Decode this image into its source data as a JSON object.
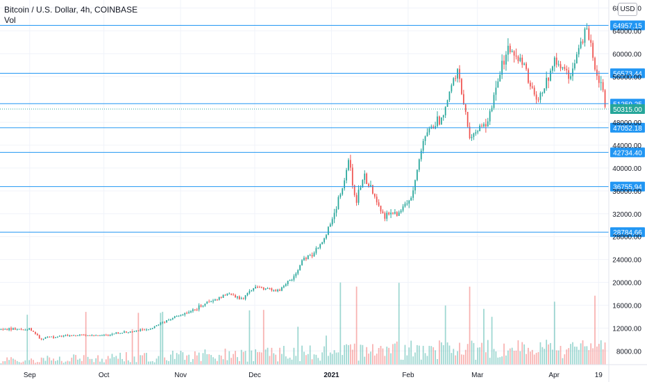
{
  "header": {
    "title": "Bitcoin / U.S. Dollar, 4h, COINBASE",
    "indicator": "Vol"
  },
  "currency_button": "USD",
  "colors": {
    "up": "#26a69a",
    "down": "#ef5350",
    "level_line": "#2196f3",
    "current_price_badge": "#26a69a",
    "grid": "#f0f3fa",
    "axis_text": "#131722"
  },
  "chart_data": {
    "type": "candlestick",
    "title": "Bitcoin / U.S. Dollar, 4h, COINBASE",
    "ylim": [
      5600,
      69400
    ],
    "y_ticks": [
      "8000.00",
      "12000.00",
      "16000.00",
      "20000.00",
      "24000.00",
      "28000.00",
      "32000.00",
      "36000.00",
      "40000.00",
      "44000.00",
      "48000.00",
      "56000.00",
      "60000.00",
      "64000.00",
      "68000.00"
    ],
    "x_ticks": [
      "Sep",
      "Oct",
      "Nov",
      "Dec",
      "2021",
      "Feb",
      "Mar",
      "Apr",
      "19"
    ],
    "current_price": "50315.00",
    "horizontal_levels": [
      "64957.15",
      "56573.44",
      "51259.25",
      "47052.18",
      "42734.40",
      "36755.94",
      "28784.66"
    ],
    "price_path": [
      [
        "2020-08-20",
        11700
      ],
      [
        "2020-09-01",
        11900
      ],
      [
        "2020-09-05",
        10200
      ],
      [
        "2020-09-20",
        10800
      ],
      [
        "2020-10-01",
        10700
      ],
      [
        "2020-10-20",
        11900
      ],
      [
        "2020-10-25",
        13100
      ],
      [
        "2020-11-05",
        15000
      ],
      [
        "2020-11-20",
        18000
      ],
      [
        "2020-11-26",
        17000
      ],
      [
        "2020-12-01",
        19300
      ],
      [
        "2020-12-10",
        18500
      ],
      [
        "2020-12-16",
        20500
      ],
      [
        "2020-12-20",
        23500
      ],
      [
        "2020-12-28",
        26500
      ],
      [
        "2021-01-03",
        33000
      ],
      [
        "2021-01-08",
        41000
      ],
      [
        "2021-01-11",
        34000
      ],
      [
        "2021-01-14",
        39000
      ],
      [
        "2021-01-22",
        31500
      ],
      [
        "2021-01-28",
        32000
      ],
      [
        "2021-02-02",
        35000
      ],
      [
        "2021-02-08",
        46000
      ],
      [
        "2021-02-14",
        48500
      ],
      [
        "2021-02-21",
        57000
      ],
      [
        "2021-02-26",
        45500
      ],
      [
        "2021-03-05",
        48000
      ],
      [
        "2021-03-13",
        61000
      ],
      [
        "2021-03-20",
        58000
      ],
      [
        "2021-03-25",
        51000
      ],
      [
        "2021-04-01",
        59000
      ],
      [
        "2021-04-08",
        56000
      ],
      [
        "2021-04-14",
        64900
      ],
      [
        "2021-04-18",
        56500
      ],
      [
        "2021-04-20",
        54500
      ],
      [
        "2021-04-22",
        50315
      ]
    ]
  }
}
